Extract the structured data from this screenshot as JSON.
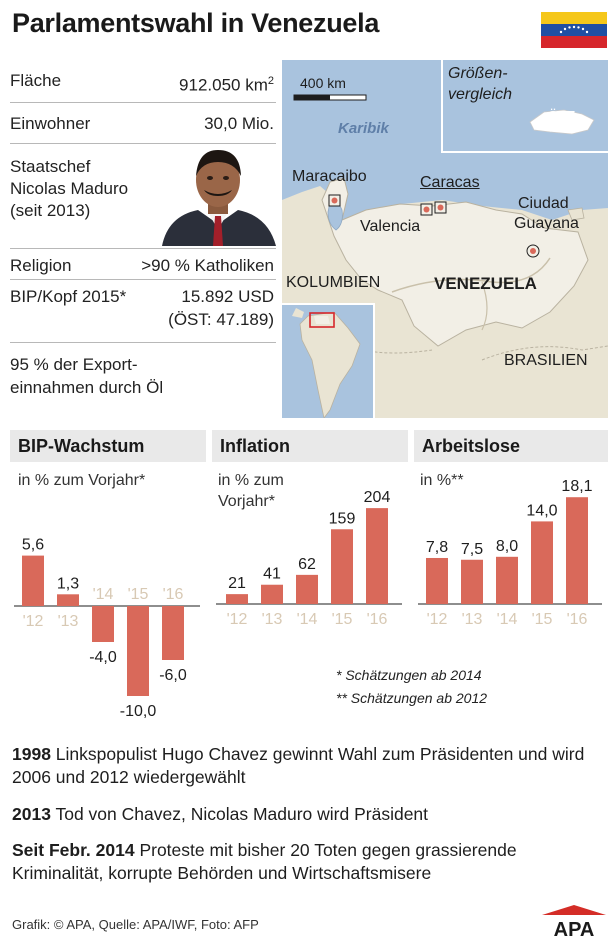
{
  "title": "Parlamentswahl in Venezuela",
  "facts": {
    "area_label": "Fläche",
    "area_value": "912.050 km",
    "area_sup": "2",
    "pop_label": "Einwohner",
    "pop_value": "30,0 Mio.",
    "head_label_1": "Staatschef",
    "head_label_2": "Nicolas Maduro",
    "head_label_3": "(seit 2013)",
    "religion_label": "Religion",
    "religion_value": ">90 % Katholiken",
    "gdp_label": "BIP/Kopf 2015*",
    "gdp_value": "15.892 USD",
    "gdp_compare": "(ÖST: 47.189)",
    "export_1": "95 % der Export-",
    "export_2": "einnahmen durch Öl"
  },
  "map": {
    "scale": "400 km",
    "sea": "Karibik",
    "compare_1": "Größen-",
    "compare_2": "vergleich",
    "austria": "ÖST",
    "city_maracaibo": "Maracaibo",
    "city_caracas": "Caracas",
    "city_valencia": "Valencia",
    "city_guayana_1": "Ciudad",
    "city_guayana_2": "Guayana",
    "country_colombia": "KOLUMBIEN",
    "country_venezuela": "VENEZUELA",
    "country_brazil": "BRASILIEN"
  },
  "chart_data": [
    {
      "type": "bar",
      "title": "BIP-Wachstum",
      "subtitle": "in % zum Vorjahr*",
      "categories": [
        "'12",
        "'13",
        "'14",
        "'15",
        "'16"
      ],
      "values": [
        5.6,
        1.3,
        -4.0,
        -10.0,
        -6.0
      ],
      "labels": [
        "5,6",
        "1,3",
        "-4,0",
        "-10,0",
        "-6,0"
      ]
    },
    {
      "type": "bar",
      "title": "Inflation",
      "subtitle": "in % zum Vorjahr*",
      "categories": [
        "'12",
        "'13",
        "'14",
        "'15",
        "'16"
      ],
      "values": [
        21,
        41,
        62,
        159,
        204
      ],
      "labels": [
        "21",
        "41",
        "62",
        "159",
        "204"
      ]
    },
    {
      "type": "bar",
      "title": "Arbeitslose",
      "subtitle": "in %**",
      "categories": [
        "'12",
        "'13",
        "'14",
        "'15",
        "'16"
      ],
      "values": [
        7.8,
        7.5,
        8.0,
        14.0,
        18.1
      ],
      "labels": [
        "7,8",
        "7,5",
        "8,0",
        "14,0",
        "18,1"
      ]
    }
  ],
  "notes": {
    "note1": "*  Schätzungen ab 2014",
    "note2": "** Schätzungen ab 2012"
  },
  "timeline": [
    {
      "year": "1998",
      "text": " Linkspopulist Hugo Chavez gewinnt Wahl zum Präsidenten und wird 2006 und 2012 wiedergewählt"
    },
    {
      "year": "2013",
      "text": " Tod von Chavez, Nicolas Maduro wird Präsident"
    },
    {
      "year": "Seit Febr. 2014",
      "text": " Proteste mit bisher 20 Toten gegen grassierende Kriminalität, korrupte Behörden und Wirtschaftsmisere"
    }
  ],
  "footer": "Grafik: © APA, Quelle: APA/IWF, Foto: AFP",
  "logo": "APA",
  "colors": {
    "bar": "#d9695a",
    "axis_label_muted": "#d8c9b4",
    "sea": "#a9c3de",
    "land": "#e9e4d3",
    "venezuela": "#f2efe6",
    "panel": "#e9e9e9",
    "logo": "#d42d27"
  }
}
